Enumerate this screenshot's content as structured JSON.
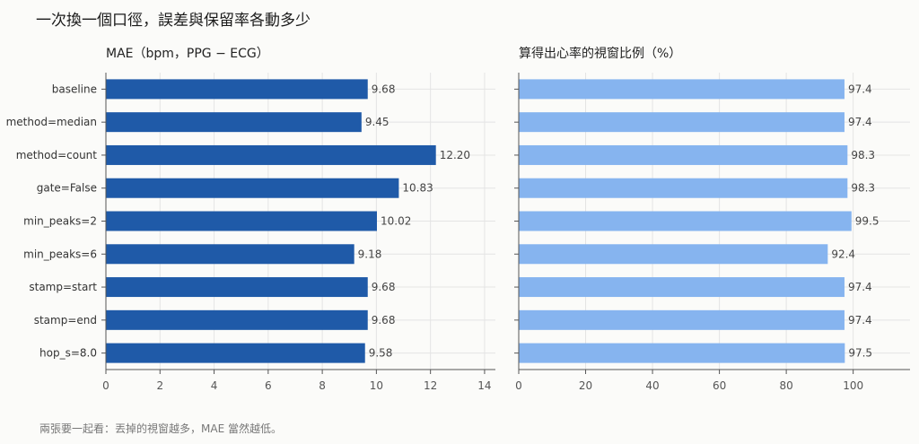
{
  "title": "一次換一個口徑，誤差與保留率各動多少",
  "caption": "兩張要一起看：丟掉的視窗越多，MAE 當然越低。",
  "colors": {
    "left_bar": "#1f5aa8",
    "right_bar": "#86b4ef"
  },
  "chart_data": [
    {
      "type": "bar",
      "orientation": "horizontal",
      "title": "MAE（bpm，PPG − ECG）",
      "categories": [
        "baseline",
        "method=median",
        "method=count",
        "gate=False",
        "min_peaks=2",
        "min_peaks=6",
        "stamp=start",
        "stamp=end",
        "hop_s=8.0"
      ],
      "values": [
        9.68,
        9.45,
        12.2,
        10.83,
        10.02,
        9.18,
        9.68,
        9.68,
        9.58
      ],
      "value_labels": [
        "9.68",
        "9.45",
        "12.20",
        "10.83",
        "10.02",
        "9.18",
        "9.68",
        "9.68",
        "9.58"
      ],
      "xlim": [
        0,
        14.4
      ],
      "xticks": [
        0,
        2,
        4,
        6,
        8,
        10,
        12,
        14
      ],
      "grid": true
    },
    {
      "type": "bar",
      "orientation": "horizontal",
      "title": "算得出心率的視窗比例（%）",
      "categories": [
        "baseline",
        "method=median",
        "method=count",
        "gate=False",
        "min_peaks=2",
        "min_peaks=6",
        "stamp=start",
        "stamp=end",
        "hop_s=8.0"
      ],
      "values": [
        97.4,
        97.4,
        98.3,
        98.3,
        99.5,
        92.4,
        97.4,
        97.4,
        97.5
      ],
      "value_labels": [
        "97.4",
        "97.4",
        "98.3",
        "98.3",
        "99.5",
        "92.4",
        "97.4",
        "97.4",
        "97.5"
      ],
      "xlim": [
        0,
        117
      ],
      "xticks": [
        0,
        20,
        40,
        60,
        80,
        100
      ],
      "grid": true
    }
  ]
}
